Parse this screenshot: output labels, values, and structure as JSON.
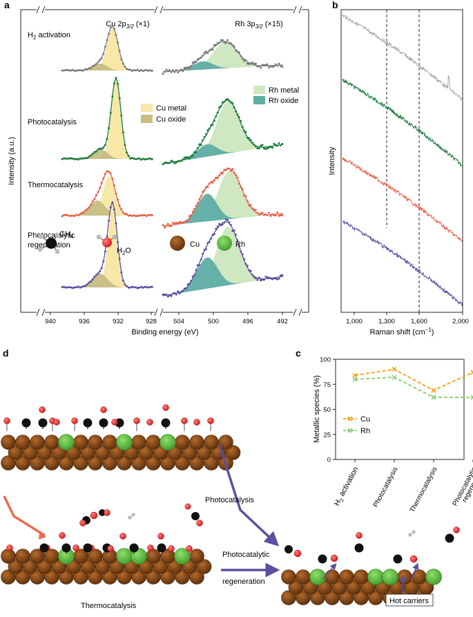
{
  "panels": {
    "a": {
      "letter": "a",
      "ylabel": "Intensity (a.u.)",
      "xlabel": "Binding energy (eV)",
      "cu_title": "Cu 2p3/2 (×1)",
      "rh_title": "Rh 3p3/2 (×15)",
      "conditions": [
        "H2 activation",
        "Photocatalysis",
        "Thermocatalysis",
        "Photocatalytic",
        "regeneration"
      ],
      "cu_legend": [
        "Cu metal",
        "Cu oxide"
      ],
      "rh_legend": [
        "Rh metal",
        "Rh oxide"
      ],
      "cu_ticks": [
        "940",
        "936",
        "932",
        "928"
      ],
      "rh_ticks": [
        "504",
        "500",
        "496",
        "492"
      ]
    },
    "b": {
      "letter": "b",
      "ylabel": "Intensity",
      "xlabel": "Raman shift (cm⁻¹)",
      "ticks": [
        "1,000",
        "1,300",
        "1,600",
        "2,000"
      ]
    },
    "c": {
      "letter": "c",
      "ylabel": "Metallic species (%)"
    },
    "d": {
      "letter": "d",
      "legend": [
        "CH4",
        "H2O",
        "Cu",
        "Rh"
      ],
      "labels": {
        "photocatalysis": "Photocatalysis",
        "thermocatalysis": "Thermocatalysis",
        "regen_line1": "Photocatalytic",
        "regen_line2": "regeneration",
        "hot_carriers": "Hot carriers"
      }
    }
  },
  "colors": {
    "h2": "#7a7a7a",
    "photo": "#1c7a3c",
    "thermo": "#e8604a",
    "regen": "#5b4fa0",
    "cu_metal": "#f7e8a8",
    "cu_oxide": "#c7bd83",
    "rh_metal": "#cfe8c2",
    "rh_oxide": "#5fada5",
    "cu_line": "#f5a623",
    "rh_line": "#8fd07a",
    "copper": "#7a4212",
    "rh_atom": "#6cc04a"
  },
  "chart_data": {
    "type": "line",
    "categories": [
      "H2 activation",
      "Photocatalysis",
      "Thermocatalysis",
      "Photocatalytic regeneration"
    ],
    "series": [
      {
        "name": "Cu",
        "values": [
          84,
          90,
          69,
          87
        ]
      },
      {
        "name": "Rh",
        "values": [
          80,
          82,
          62,
          62
        ]
      }
    ],
    "ylabel": "Metallic species (%)",
    "ylim": [
      0,
      100
    ],
    "yticks": [
      "0",
      "25",
      "50",
      "75",
      "100"
    ]
  }
}
